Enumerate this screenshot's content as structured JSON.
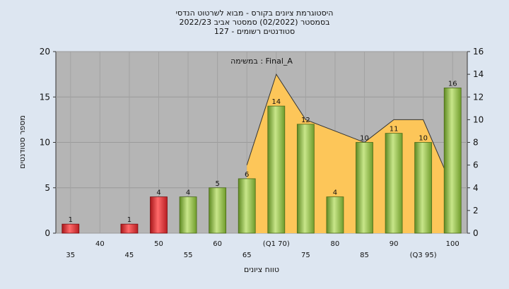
{
  "chart_data": {
    "type": "bar",
    "title_lines": [
      "היסטוגרמת ציונים בקורס - מבוא לשרטוט הנדסי",
      "בסמסטר  (02/2022)  סמסטר אביב 2022/23",
      "127 - סטודנטים רשומים"
    ],
    "annotation": "במשימה : Final_A",
    "xlabel": "טווח ציונים",
    "ylabel": "מספר סטודנטים",
    "categories": [
      "35",
      "40",
      "45",
      "50",
      "55",
      "60",
      "65",
      "70",
      "75",
      "80",
      "85",
      "90",
      "95",
      "100"
    ],
    "category_labels": [
      "35",
      "40",
      "45",
      "50",
      "55",
      "60",
      "65",
      "(Q1 70)",
      "75",
      "80",
      "85",
      "90",
      "(Q3 95)",
      "100"
    ],
    "values": [
      1,
      0,
      1,
      4,
      4,
      5,
      6,
      14,
      12,
      4,
      10,
      11,
      10,
      16
    ],
    "bar_colors": [
      "#e23a3a",
      "#e23a3a",
      "#e23a3a",
      "#e23a3a",
      "#8fc043",
      "#8fc043",
      "#8fc043",
      "#8fc043",
      "#8fc043",
      "#8fc043",
      "#8fc043",
      "#8fc043",
      "#8fc043",
      "#8fc043"
    ],
    "ylim_left": [
      0,
      20
    ],
    "yticks_left": [
      0,
      5,
      10,
      15,
      20
    ],
    "ylim_right": [
      0,
      16
    ],
    "yticks_right": [
      0,
      2,
      4,
      6,
      8,
      10,
      12,
      14,
      16
    ],
    "area_series_right_axis": [
      {
        "x": "65",
        "y": 6
      },
      {
        "x": "70",
        "y": 14
      },
      {
        "x": "75",
        "y": 10
      },
      {
        "x": "85",
        "y": 8
      },
      {
        "x": "90",
        "y": 10
      },
      {
        "x": "95",
        "y": 10
      },
      {
        "x": "100",
        "y": 4
      }
    ],
    "area_color": "#fdc659",
    "plot_background": "#b5b5b5",
    "grid": true
  }
}
